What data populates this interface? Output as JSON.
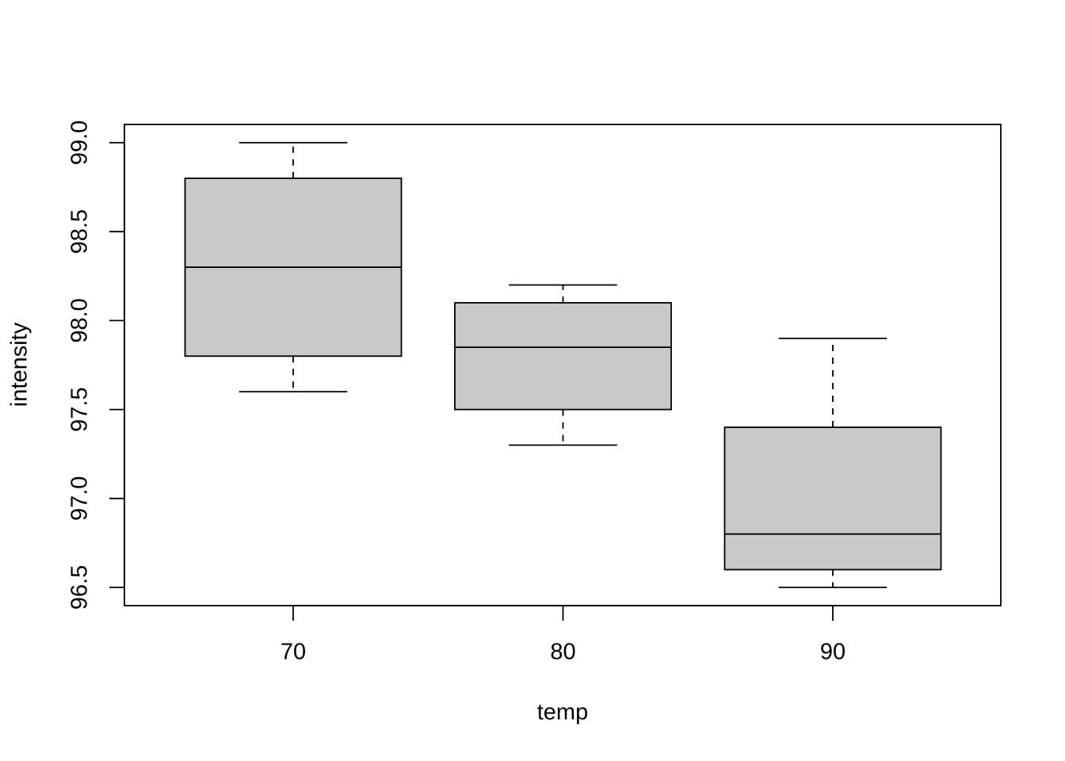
{
  "chart_data": {
    "type": "box",
    "x_label": "temp",
    "y_label": "intensity",
    "categories": [
      "70",
      "80",
      "90"
    ],
    "color": "#c9c9c9",
    "boxes": [
      {
        "min": 97.6,
        "q1": 97.8,
        "median": 98.3,
        "q3": 98.8,
        "max": 99.0
      },
      {
        "min": 97.3,
        "q1": 97.5,
        "median": 97.85,
        "q3": 98.1,
        "max": 98.2
      },
      {
        "min": 96.5,
        "q1": 96.6,
        "median": 96.8,
        "q3": 97.4,
        "max": 97.9
      }
    ],
    "ylim": [
      96.3975,
      99.1025
    ],
    "yticks": [
      {
        "value": 96.5,
        "label": "96.5"
      },
      {
        "value": 97,
        "label": "97.0"
      },
      97.5,
      {
        "value": 98,
        "label": "98.0"
      },
      98.5,
      {
        "value": 99,
        "label": "99.0"
      }
    ],
    "grid": false
  }
}
